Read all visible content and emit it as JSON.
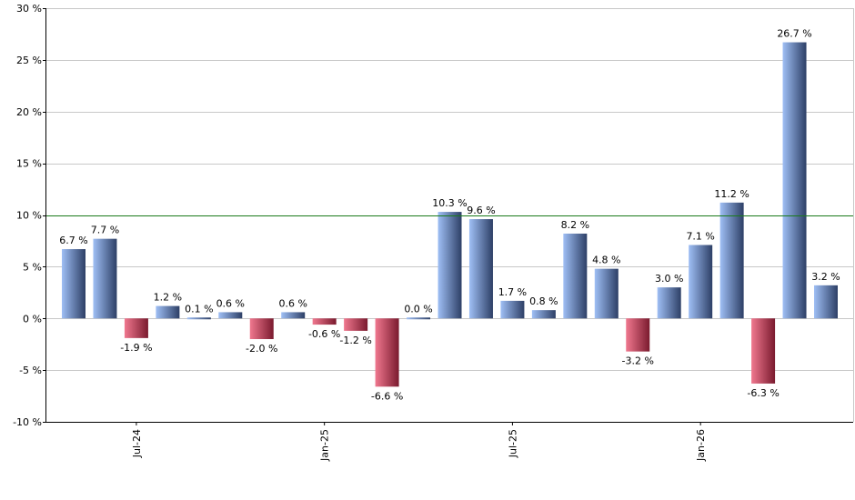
{
  "chart_data": {
    "type": "bar",
    "title": "",
    "xlabel": "",
    "ylabel": "",
    "ylim": [
      -10,
      30
    ],
    "yticks": [
      -10,
      -5,
      0,
      5,
      10,
      15,
      20,
      25,
      30
    ],
    "ytick_labels": [
      "-10 %",
      "-5 %",
      "0 %",
      "5 %",
      "10 %",
      "15 %",
      "20 %",
      "25 %",
      "30 %"
    ],
    "reference_line": 10,
    "grid": true,
    "values": [
      6.7,
      7.7,
      -1.9,
      1.2,
      0.1,
      0.6,
      -2.0,
      0.6,
      -0.6,
      -1.2,
      -6.6,
      0.0,
      10.3,
      9.6,
      1.7,
      0.8,
      8.2,
      4.8,
      -3.2,
      3.0,
      7.1,
      11.2,
      -6.3,
      26.7,
      3.2
    ],
    "value_labels": [
      "6.7 %",
      "7.7 %",
      "-1.9 %",
      "1.2 %",
      "0.1 %",
      "0.6 %",
      "-2.0 %",
      "0.6 %",
      "-0.6 %",
      "-1.2 %",
      "-6.6 %",
      "0.0 %",
      "10.3 %",
      "9.6 %",
      "1.7 %",
      "0.8 %",
      "8.2 %",
      "4.8 %",
      "-3.2 %",
      "3.0 %",
      "7.1 %",
      "11.2 %",
      "-6.3 %",
      "26.7 %",
      "3.2 %"
    ],
    "x_tick_labels": [
      {
        "index": 2,
        "label": "Jul-24"
      },
      {
        "index": 8,
        "label": "Jan-25"
      },
      {
        "index": 14,
        "label": "Jul-25"
      },
      {
        "index": 20,
        "label": "Jan-26"
      }
    ],
    "colors": {
      "positive_light": "#9fbff5",
      "positive_dark": "#2d3f66",
      "negative_light": "#f0788f",
      "negative_dark": "#7a1a2e",
      "grid": "#c8c8c8",
      "reference_line": "#1a7a1a",
      "axis": "#000000"
    }
  }
}
